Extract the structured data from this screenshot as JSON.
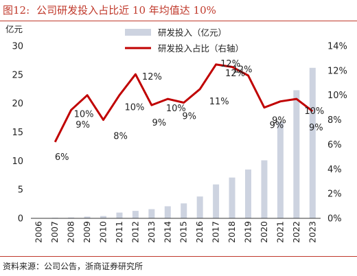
{
  "figure": {
    "number": "图12:",
    "title": "公司研发投入占比近 10 年均值达 10%"
  },
  "source": "资料来源：公司公告，浙商证券研究所",
  "colors": {
    "accent": "#c0392b",
    "bar": "#cdd3e0",
    "line": "#c00000"
  },
  "chart_data": {
    "type": "bar+line",
    "title": "公司研发投入占比近 10 年均值达 10%",
    "left_axis_unit": "亿元",
    "categories": [
      "2006",
      "2007",
      "2008",
      "2009",
      "2010",
      "2011",
      "2012",
      "2013",
      "2014",
      "2015",
      "2016",
      "2017",
      "2018",
      "2019",
      "2020",
      "2021",
      "2022",
      "2023"
    ],
    "series": [
      {
        "name": "研发投入（亿元）",
        "type": "bar",
        "axis": "left",
        "values": [
          0.05,
          0.1,
          0.15,
          0.3,
          0.4,
          1.0,
          1.3,
          1.6,
          2.1,
          2.6,
          3.8,
          5.9,
          7.1,
          8.5,
          10.1,
          16.8,
          22.3,
          26.2
        ]
      },
      {
        "name": "研发投入占比（右轴）",
        "type": "line",
        "axis": "right",
        "values": [
          null,
          6.2,
          8.8,
          10.0,
          8.0,
          10.0,
          11.7,
          9.2,
          9.7,
          9.4,
          10.5,
          12.5,
          12.3,
          11.6,
          9.0,
          9.5,
          9.7,
          8.7
        ],
        "labels": [
          null,
          "6%",
          "9%",
          "10%",
          "8%",
          "10%",
          "12%",
          "9%",
          "10%",
          "9%",
          "11%",
          "12%",
          "12%",
          "12%",
          "9%",
          "9%",
          "10%",
          "9%"
        ]
      }
    ],
    "ylim_left": [
      0,
      30
    ],
    "yticks_left": [
      "0",
      "5",
      "10",
      "15",
      "20",
      "25",
      "30"
    ],
    "ylim_right": [
      0,
      14
    ],
    "yticks_right": [
      "0%",
      "2%",
      "4%",
      "6%",
      "8%",
      "10%",
      "12%",
      "14%"
    ],
    "legend_position": "top-center",
    "grid": false
  }
}
